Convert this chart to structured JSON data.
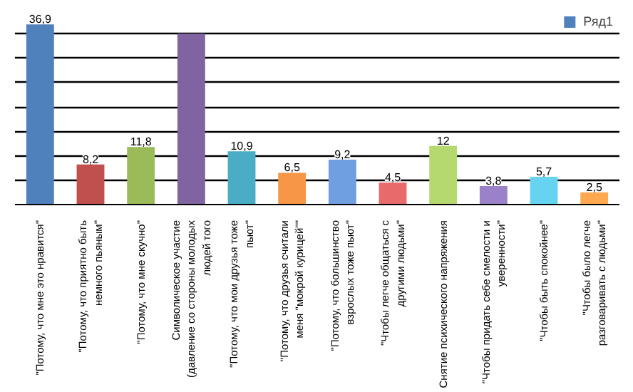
{
  "chart_data": {
    "type": "bar",
    "categories": [
      "\"Потому, что мне это нравится\"",
      "\"Потому, что приятно быть немного пьяным\"",
      "\"Потому, что мне скучно\"",
      "Символическое участие (давление со стороны молодых людей того",
      "\"Потому, что мои друзья тоже пьют\"",
      "\"Потому, что друзья считали меня \"мокрой курицей\"\"",
      "\"Потому, что большинство взрослых тоже пьют\"",
      "\"Чтобы легче общаться с другими людьми\"",
      "Снятие психического напряжения",
      "\"Чтобы придать себе смелости и уверенности\"",
      "\"Чтобы быть спокойнее\"",
      "\"Чтобы было легче разговаривать с людьми\""
    ],
    "series": [
      {
        "name": "Ряд1",
        "values": [
          36.9,
          8.2,
          11.8,
          35,
          10.9,
          6.5,
          9.2,
          4.5,
          12,
          3.8,
          5.7,
          2.5
        ],
        "colors": [
          "#4f81bd",
          "#c0504d",
          "#9bbb59",
          "#8064a2",
          "#4bacc6",
          "#f79646",
          "#6f9fe0",
          "#e86a6a",
          "#b5d96e",
          "#9b82c8",
          "#66d4f0",
          "#ffa850"
        ],
        "value_labels": [
          "36,9",
          "8,2",
          "11,8",
          null,
          "10,9",
          "6,5",
          "9,2",
          "4,5",
          "12",
          "3,8",
          "5,7",
          "2,5"
        ]
      }
    ],
    "ylim": [
      0,
      40
    ],
    "yticks": [
      {
        "value": 0,
        "label": null
      },
      {
        "value": 5,
        "label": null
      },
      {
        "value": 10,
        "label": null
      },
      {
        "value": 15,
        "label": null
      },
      {
        "value": 20,
        "label": null
      },
      {
        "value": 25,
        "label": null
      },
      {
        "value": 30,
        "label": null
      },
      {
        "value": 35,
        "label": null
      }
    ],
    "grid": "y",
    "tick_labels": "x",
    "legend": "top right"
  }
}
